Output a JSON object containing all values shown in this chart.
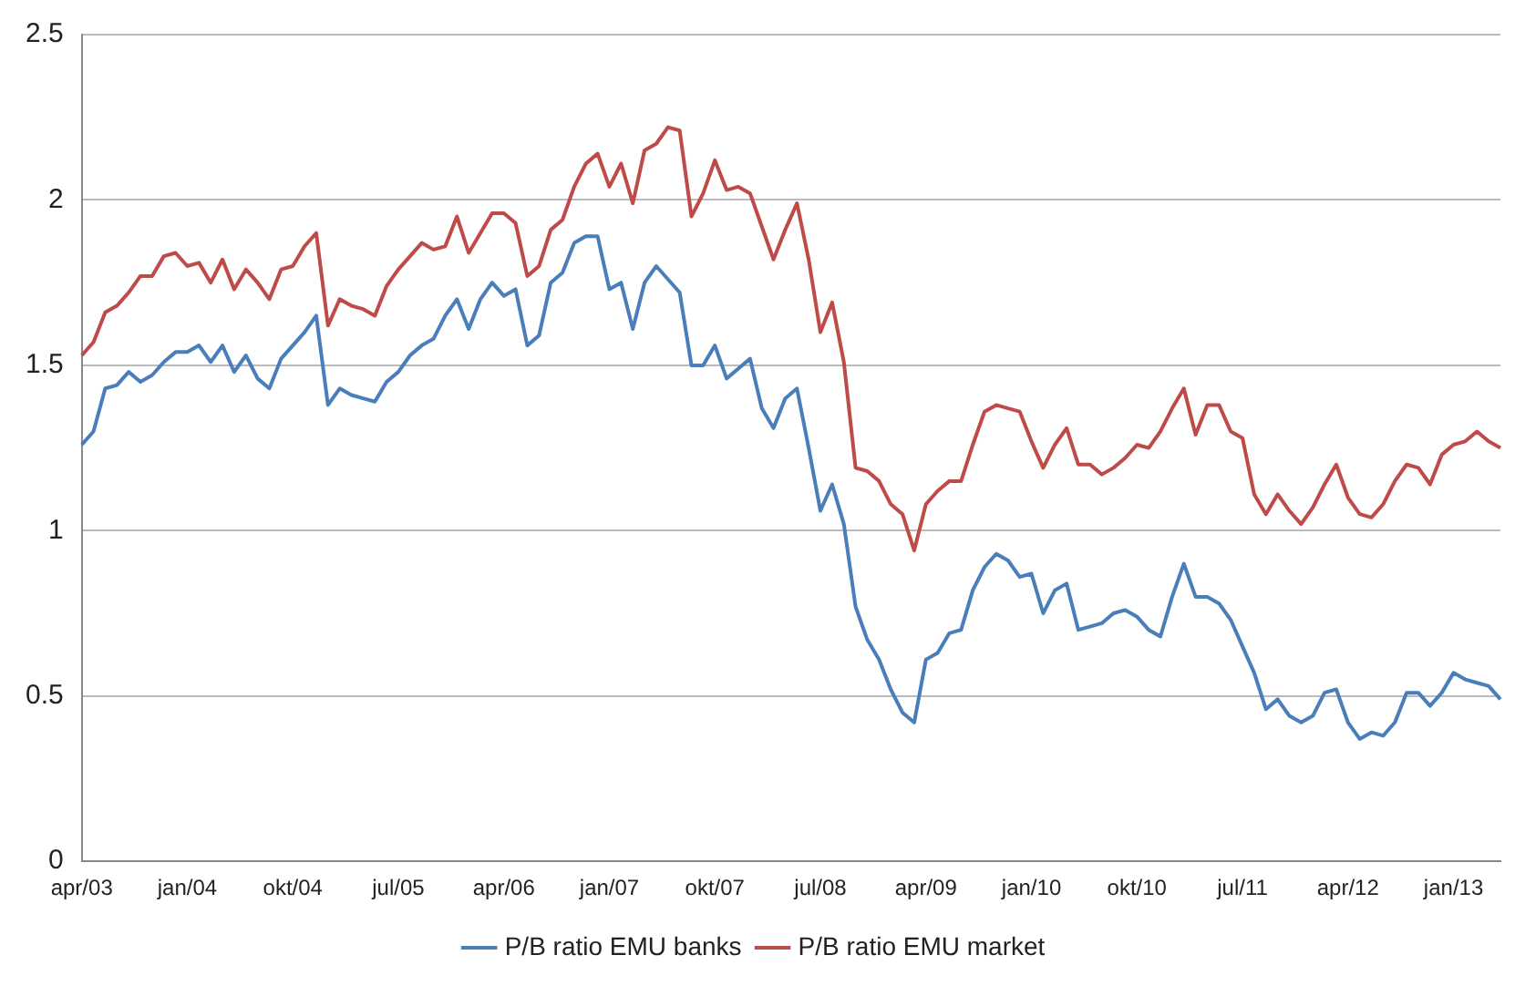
{
  "chart_data": {
    "type": "line",
    "categories": [
      "apr/03",
      null,
      null,
      null,
      null,
      null,
      null,
      null,
      null,
      "jan/04",
      null,
      null,
      null,
      null,
      null,
      null,
      null,
      null,
      "okt/04",
      null,
      null,
      null,
      null,
      null,
      null,
      null,
      null,
      "jul/05",
      null,
      null,
      null,
      null,
      null,
      null,
      null,
      null,
      "apr/06",
      null,
      null,
      null,
      null,
      null,
      null,
      null,
      null,
      "jan/07",
      null,
      null,
      null,
      null,
      null,
      null,
      null,
      null,
      "okt/07",
      null,
      null,
      null,
      null,
      null,
      null,
      null,
      null,
      "jul/08",
      null,
      null,
      null,
      null,
      null,
      null,
      null,
      null,
      "apr/09",
      null,
      null,
      null,
      null,
      null,
      null,
      null,
      null,
      "jan/10",
      null,
      null,
      null,
      null,
      null,
      null,
      null,
      null,
      "okt/10",
      null,
      null,
      null,
      null,
      null,
      null,
      null,
      null,
      "jul/11",
      null,
      null,
      null,
      null,
      null,
      null,
      null,
      null,
      "apr/12",
      null,
      null,
      null,
      null,
      null,
      null,
      null,
      null,
      "jan/13",
      null,
      null,
      null,
      null
    ],
    "series": [
      {
        "name": "P/B ratio EMU banks",
        "color": "#4a7ebb",
        "values": [
          1.26,
          1.3,
          1.43,
          1.44,
          1.48,
          1.45,
          1.47,
          1.51,
          1.54,
          1.54,
          1.56,
          1.51,
          1.56,
          1.48,
          1.53,
          1.46,
          1.43,
          1.52,
          1.56,
          1.6,
          1.65,
          1.38,
          1.43,
          1.41,
          1.4,
          1.39,
          1.45,
          1.48,
          1.53,
          1.56,
          1.58,
          1.65,
          1.7,
          1.61,
          1.7,
          1.75,
          1.71,
          1.73,
          1.56,
          1.59,
          1.75,
          1.78,
          1.87,
          1.89,
          1.89,
          1.73,
          1.75,
          1.61,
          1.75,
          1.8,
          1.76,
          1.72,
          1.5,
          1.5,
          1.56,
          1.46,
          1.49,
          1.52,
          1.37,
          1.31,
          1.4,
          1.43,
          1.25,
          1.06,
          1.14,
          1.02,
          0.77,
          0.67,
          0.61,
          0.52,
          0.45,
          0.42,
          0.61,
          0.63,
          0.69,
          0.7,
          0.82,
          0.89,
          0.93,
          0.91,
          0.86,
          0.87,
          0.75,
          0.82,
          0.84,
          0.7,
          0.71,
          0.72,
          0.75,
          0.76,
          0.74,
          0.7,
          0.68,
          0.8,
          0.9,
          0.8,
          0.8,
          0.78,
          0.73,
          0.65,
          0.57,
          0.46,
          0.49,
          0.44,
          0.42,
          0.44,
          0.51,
          0.52,
          0.42,
          0.37,
          0.39,
          0.38,
          0.42,
          0.51,
          0.51,
          0.47,
          0.51,
          0.57,
          0.55,
          0.54,
          0.53,
          0.49
        ]
      },
      {
        "name": "P/B ratio EMU market",
        "color": "#be4b48",
        "values": [
          1.53,
          1.57,
          1.66,
          1.68,
          1.72,
          1.77,
          1.77,
          1.83,
          1.84,
          1.8,
          1.81,
          1.75,
          1.82,
          1.73,
          1.79,
          1.75,
          1.7,
          1.79,
          1.8,
          1.86,
          1.9,
          1.62,
          1.7,
          1.68,
          1.67,
          1.65,
          1.74,
          1.79,
          1.83,
          1.87,
          1.85,
          1.86,
          1.95,
          1.84,
          1.9,
          1.96,
          1.96,
          1.93,
          1.77,
          1.8,
          1.91,
          1.94,
          2.04,
          2.11,
          2.14,
          2.04,
          2.11,
          1.99,
          2.15,
          2.17,
          2.22,
          2.21,
          1.95,
          2.02,
          2.12,
          2.03,
          2.04,
          2.02,
          1.92,
          1.82,
          1.91,
          1.99,
          1.82,
          1.6,
          1.69,
          1.51,
          1.19,
          1.18,
          1.15,
          1.08,
          1.05,
          0.94,
          1.08,
          1.12,
          1.15,
          1.15,
          1.26,
          1.36,
          1.38,
          1.37,
          1.36,
          1.27,
          1.19,
          1.26,
          1.31,
          1.2,
          1.2,
          1.17,
          1.19,
          1.22,
          1.26,
          1.25,
          1.3,
          1.37,
          1.43,
          1.29,
          1.38,
          1.38,
          1.3,
          1.28,
          1.11,
          1.05,
          1.11,
          1.06,
          1.02,
          1.07,
          1.14,
          1.2,
          1.1,
          1.05,
          1.04,
          1.08,
          1.15,
          1.2,
          1.19,
          1.14,
          1.23,
          1.26,
          1.27,
          1.3,
          1.27,
          1.25
        ]
      }
    ],
    "ylim": [
      0,
      2.5
    ],
    "yticks": [
      0,
      0.5,
      1,
      1.5,
      2,
      2.5
    ],
    "grid": "y",
    "legend": "bottom",
    "marker": "none",
    "line_style": "solid"
  }
}
